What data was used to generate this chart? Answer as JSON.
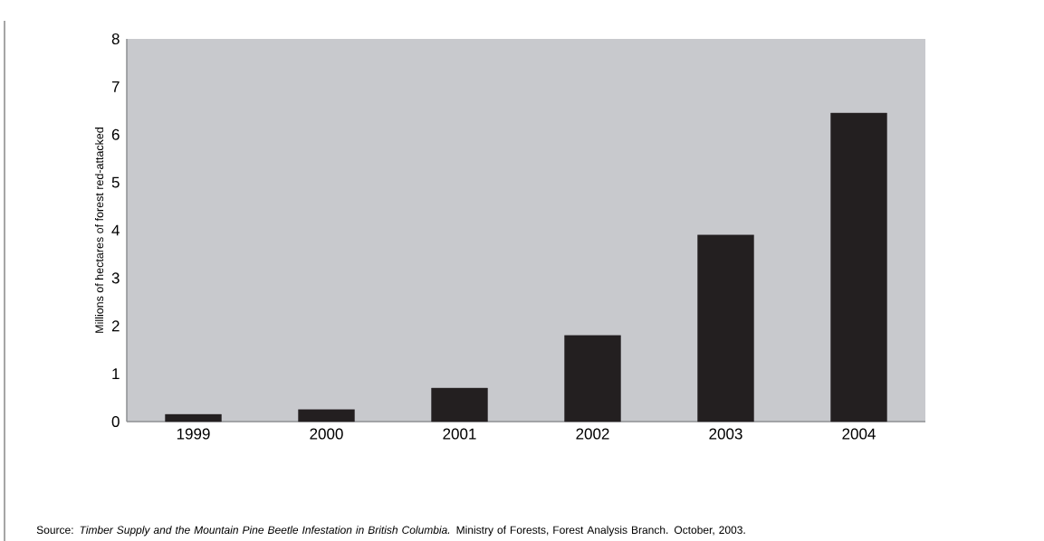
{
  "chart_data": {
    "type": "bar",
    "ylabel": "Millions of hectares of forest red-attacked",
    "categories": [
      "1999",
      "2000",
      "2001",
      "2002",
      "2003",
      "2004"
    ],
    "values": [
      0.15,
      0.25,
      0.7,
      1.8,
      3.9,
      6.45
    ],
    "color": "#231f20",
    "ylim": [
      0,
      8
    ],
    "yticks": [
      0,
      1,
      2,
      3,
      4,
      5,
      6,
      7,
      8
    ],
    "grid": false,
    "annotations": [
      "Source: *Timber Supply and the Mountain Pine Beetle Infestation in British Columbia.* Ministry of Forests, Forest Analysis Branch. October, 2003."
    ]
  }
}
